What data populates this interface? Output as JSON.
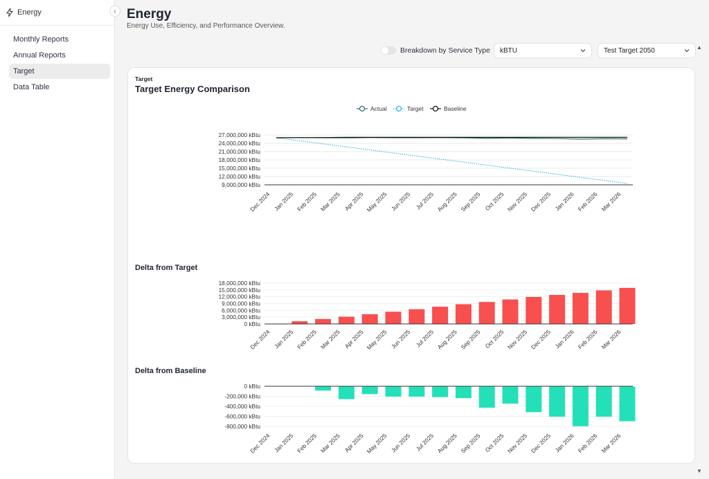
{
  "sidebar": {
    "app_title": "Energy",
    "collapse_glyph": "‹",
    "items": [
      {
        "label": "Monthly Reports",
        "active": false
      },
      {
        "label": "Annual Reports",
        "active": false
      },
      {
        "label": "Target",
        "active": true
      },
      {
        "label": "Data Table",
        "active": false
      }
    ]
  },
  "header": {
    "title": "Energy",
    "subtitle": "Energy Use, Efficiency, and Performance Overview."
  },
  "controls": {
    "toggle_label": "Breakdown by Service Type",
    "toggle_on": false,
    "unit_value": "kBTU",
    "target_value": "Test Target 2050"
  },
  "card": {
    "eyebrow": "Target",
    "title": "Target Energy Comparison",
    "delta_target_title": "Delta from Target",
    "delta_baseline_title": "Delta from Baseline"
  },
  "chart_data": [
    {
      "type": "line",
      "title": "Target Energy Comparison",
      "x": [
        "Dec 2024",
        "Jan 2025",
        "Feb 2025",
        "Mar 2025",
        "Apr 2025",
        "May 2025",
        "Jun 2025",
        "Jul 2025",
        "Aug 2025",
        "Sep 2025",
        "Oct 2025",
        "Nov 2025",
        "Dec 2025",
        "Jan 2026",
        "Feb 2026",
        "Mar 2026"
      ],
      "y_ticks": [
        "27,000,000 kBtu",
        "24,000,000 kBtu",
        "21,000,000 kBtu",
        "18,000,000 kBtu",
        "15,000,000 kBtu",
        "12,000,000 kBtu",
        "9,000,000 kBtu"
      ],
      "ylim": [
        9000000,
        27000000
      ],
      "legend_position": "top-center",
      "series": [
        {
          "name": "Actual",
          "color": "#2f6f6a",
          "style": "solid",
          "values": [
            26000000,
            26050000,
            26000000,
            25950000,
            26050000,
            26000000,
            25980000,
            26020000,
            25970000,
            25780000,
            25900000,
            25750000,
            25700000,
            25500000,
            25650000,
            25600000
          ]
        },
        {
          "name": "Target",
          "color": "#35b6e0",
          "style": "dotted",
          "values": [
            26000000,
            24900000,
            23800000,
            22700000,
            21600000,
            20500000,
            19400000,
            18300000,
            17200000,
            16100000,
            15000000,
            13900000,
            12800000,
            11700000,
            10600000,
            9500000
          ]
        },
        {
          "name": "Baseline",
          "color": "#111111",
          "style": "solid",
          "values": [
            26000000,
            26050000,
            26080000,
            26150000,
            26150000,
            26150000,
            26150000,
            26150000,
            26150000,
            26150000,
            26150000,
            26150000,
            26150000,
            26150000,
            26150000,
            26150000
          ]
        }
      ]
    },
    {
      "type": "bar",
      "title": "Delta from Target",
      "categories": [
        "Dec 2024",
        "Jan 2025",
        "Feb 2025",
        "Mar 2025",
        "Apr 2025",
        "May 2025",
        "Jun 2025",
        "Jul 2025",
        "Aug 2025",
        "Sep 2025",
        "Oct 2025",
        "Nov 2025",
        "Dec 2025",
        "Jan 2026",
        "Feb 2026",
        "Mar 2026"
      ],
      "y_ticks": [
        "18,000,000 kBtu",
        "15,000,000 kBtu",
        "12,000,000 kBtu",
        "9,000,000 kBtu",
        "6,000,000 kBtu",
        "3,000,000 kBtu",
        "0 kBtu"
      ],
      "ylim": [
        0,
        18000000
      ],
      "color": "#f84f4f",
      "values": [
        0,
        1200000,
        2200000,
        3200000,
        4300000,
        5400000,
        6500000,
        7600000,
        8700000,
        9700000,
        10800000,
        11900000,
        12800000,
        13700000,
        14800000,
        15900000
      ]
    },
    {
      "type": "bar",
      "title": "Delta from Baseline",
      "categories": [
        "Dec 2024",
        "Jan 2025",
        "Feb 2025",
        "Mar 2025",
        "Apr 2025",
        "May 2025",
        "Jun 2025",
        "Jul 2025",
        "Aug 2025",
        "Sep 2025",
        "Oct 2025",
        "Nov 2025",
        "Dec 2025",
        "Jan 2026",
        "Feb 2026",
        "Mar 2026"
      ],
      "y_ticks": [
        "0 kBtu",
        "-200,000 kBtu",
        "-400,000 kBtu",
        "-600,000 kBtu",
        "-800,000 kBtu"
      ],
      "ylim": [
        -800000,
        0
      ],
      "color": "#24e0b8",
      "values": [
        0,
        0,
        -80000,
        -250000,
        -150000,
        -200000,
        -200000,
        -210000,
        -230000,
        -420000,
        -340000,
        -510000,
        -600000,
        -790000,
        -600000,
        -690000
      ]
    }
  ]
}
